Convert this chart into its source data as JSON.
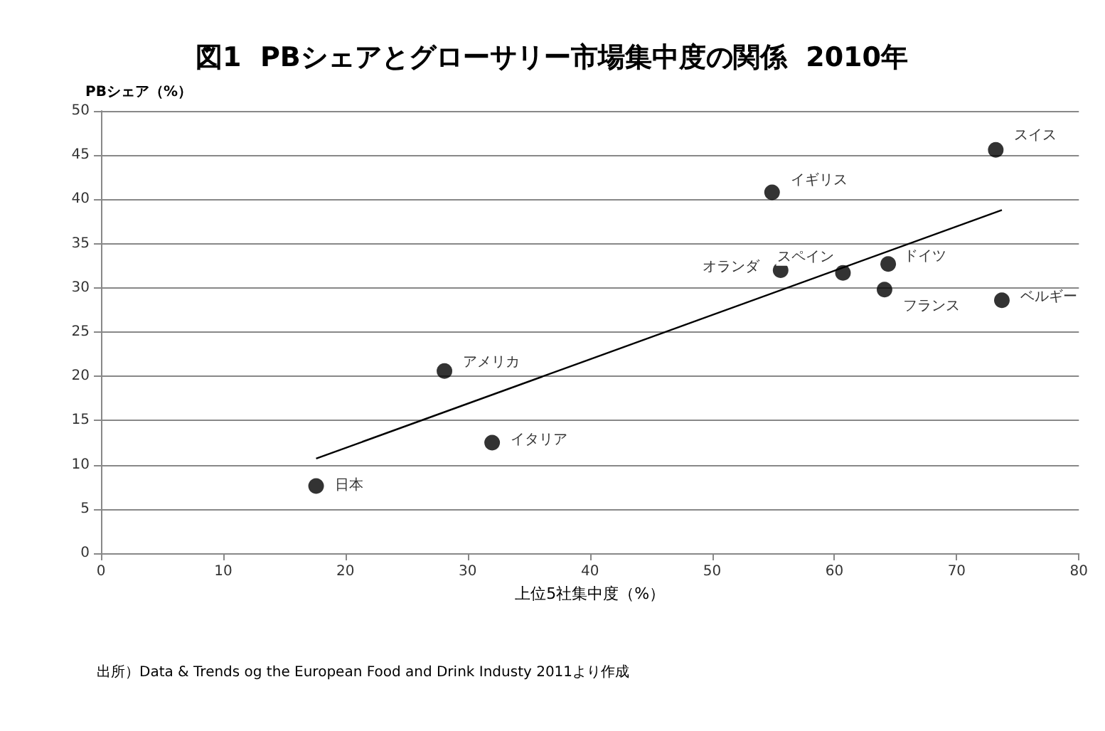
{
  "chart_data": {
    "type": "scatter",
    "title": "図1  PBシェアとグローサリー市場集中度の関係  2010年",
    "xlabel": "上位5社集中度（%）",
    "ylabel": "PBシェア（%）",
    "xlim": [
      0,
      80
    ],
    "xticks": [
      0,
      10,
      20,
      30,
      40,
      50,
      60,
      70,
      80
    ],
    "ylim": [
      0,
      50
    ],
    "yticks": [
      0,
      5,
      10,
      15,
      20,
      25,
      30,
      35,
      40,
      45,
      50
    ],
    "grid": "y",
    "marker": "circle",
    "series": [
      {
        "color": "#000000",
        "x": [
          17.6,
          28.1,
          32.0,
          54.9,
          55.6,
          60.7,
          64.4,
          64.1,
          73.2,
          73.7
        ],
        "values": [
          7.6,
          20.6,
          12.5,
          40.8,
          32.0,
          31.7,
          32.7,
          29.8,
          45.6,
          28.6
        ]
      },
      {
        "type": "line",
        "color": "#000000",
        "marker": "none",
        "x": [
          17.6,
          73.7
        ],
        "values": [
          10.7,
          38.8
        ]
      }
    ],
    "annotations": [
      {
        "text": "日本",
        "x": 17.6,
        "y": 7.6
      },
      {
        "text": "アメリカ",
        "x": 28.1,
        "y": 20.6
      },
      {
        "text": "イタリア",
        "x": 32.0,
        "y": 12.5
      },
      {
        "text": "イギリス",
        "x": 54.9,
        "y": 40.8
      },
      {
        "text": "オランダ",
        "x": 55.6,
        "y": 32.0
      },
      {
        "text": "スペイン",
        "x": 60.7,
        "y": 31.7
      },
      {
        "text": "ドイツ",
        "x": 64.4,
        "y": 32.7
      },
      {
        "text": "フランス",
        "x": 64.1,
        "y": 29.8
      },
      {
        "text": "スイス",
        "x": 73.2,
        "y": 45.6
      },
      {
        "text": "ベルギー",
        "x": 73.7,
        "y": 28.6
      },
      "出所）Data & Trends og the European Food and Drink Industy 2011より作成"
    ]
  }
}
